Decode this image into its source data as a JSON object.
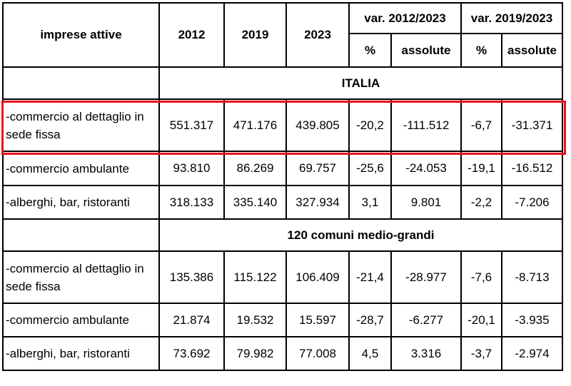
{
  "header": {
    "row_label": "imprese attive",
    "years": [
      "2012",
      "2019",
      "2023"
    ],
    "var_groups": [
      "var. 2012/2023",
      "var. 2019/2023"
    ],
    "sub": [
      "%",
      "assolute",
      "%",
      "assolute"
    ]
  },
  "sections": [
    {
      "title": "ITALIA",
      "rows": [
        [
          "-commercio al dettaglio in sede fissa",
          "551.317",
          "471.176",
          "439.805",
          "-20,2",
          "-111.512",
          "-6,7",
          "-31.371"
        ],
        [
          "-commercio ambulante",
          "93.810",
          "86.269",
          "69.757",
          "-25,6",
          "-24.053",
          "-19,1",
          "-16.512"
        ],
        [
          "-alberghi, bar, ristoranti",
          "318.133",
          "335.140",
          "327.934",
          "3,1",
          "9.801",
          "-2,2",
          "-7.206"
        ]
      ]
    },
    {
      "title": "120 comuni medio-grandi",
      "rows": [
        [
          "-commercio al dettaglio in sede fissa",
          "135.386",
          "115.122",
          "106.409",
          "-21,4",
          "-28.977",
          "-7,6",
          "-8.713"
        ],
        [
          "-commercio ambulante",
          "21.874",
          "19.532",
          "15.597",
          "-28,7",
          "-6.277",
          "-20,1",
          "-3.935"
        ],
        [
          "-alberghi, bar, ristoranti",
          "73.692",
          "79.982",
          "77.008",
          "4,5",
          "3.316",
          "-3,7",
          "-2.974"
        ]
      ]
    }
  ]
}
